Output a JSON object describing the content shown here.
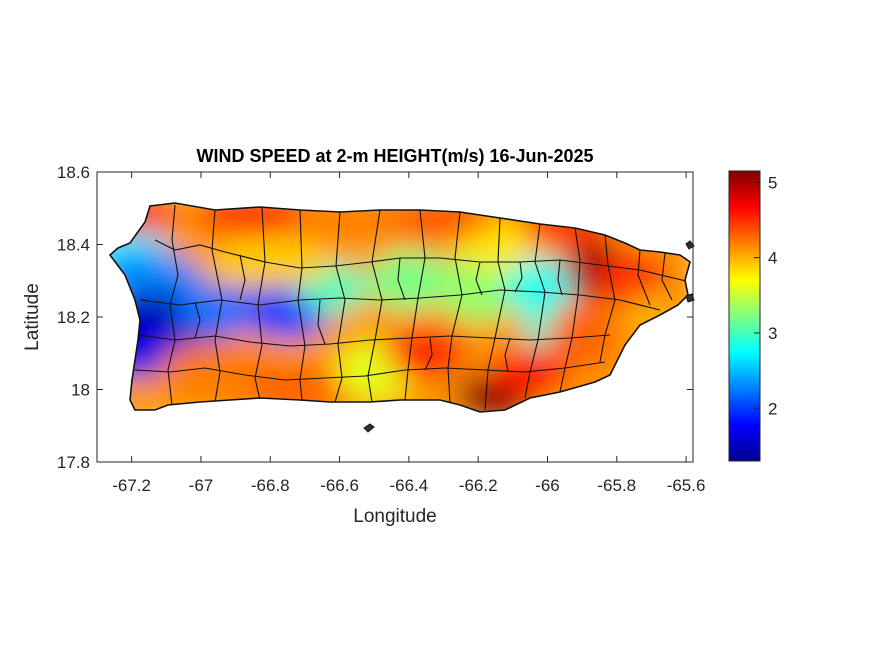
{
  "chart_data": {
    "type": "heatmap",
    "title": "WIND SPEED at 2-m HEIGHT(m/s) 16-Jun-2025",
    "xlabel": "Longitude",
    "ylabel": "Latitude",
    "xlim": [
      -67.3,
      -65.58
    ],
    "ylim": [
      17.8,
      18.6
    ],
    "xticks": [
      "-67.2",
      "-67",
      "-66.8",
      "-66.6",
      "-66.4",
      "-66.2",
      "-66",
      "-65.8",
      "-65.6"
    ],
    "yticks": [
      "18.6",
      "18.4",
      "18.2",
      "18",
      "17.8"
    ],
    "colorbar": {
      "colormap": "jet",
      "clim": [
        1.3,
        5.15
      ],
      "ticks": [
        "5",
        "4",
        "3",
        "2"
      ]
    },
    "field_summary": {
      "min_region": "west (around -67.1, 18.18) ~1.5 m/s",
      "secondary_low": "central-west (around -66.75, 18.22) ~2.0 m/s",
      "max_regions": "south-central coast (around -66.15, 17.98) and northeast (around -65.82, 18.33) ~5 m/s"
    }
  }
}
